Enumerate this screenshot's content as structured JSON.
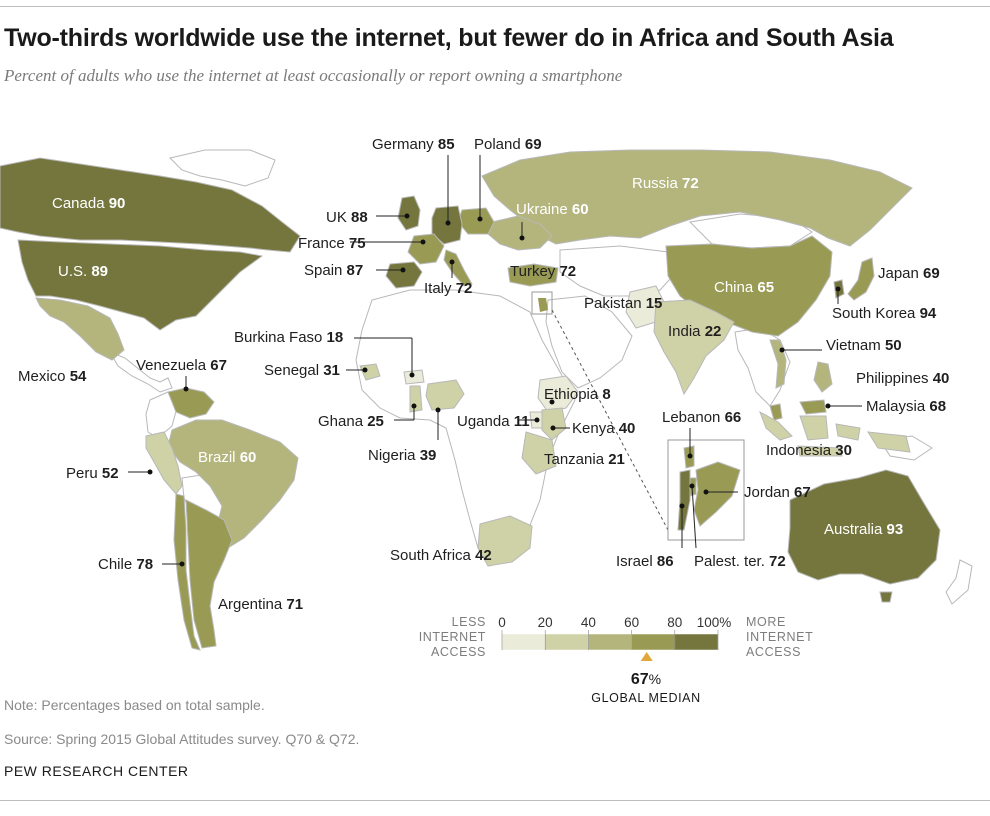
{
  "title": "Two-thirds worldwide use the internet, but fewer do in Africa and South Asia",
  "subtitle": "Percent of adults who use the internet at least occasionally or report owning a smartphone",
  "colors": {
    "bin_0_20": "#ebebd9",
    "bin_20_40": "#cfd2a6",
    "bin_40_60": "#b3b57d",
    "bin_60_80": "#999b55",
    "bin_80_100": "#74763d",
    "no_data": "#ffffff",
    "border": "#b8b8b8",
    "median_marker": "#e0a73a"
  },
  "legend": {
    "less_line1": "LESS",
    "less_line2": "INTERNET",
    "less_line3": "ACCESS",
    "more_line1": "MORE",
    "more_line2": "INTERNET",
    "more_line3": "ACCESS",
    "ticks": [
      "0",
      "20",
      "40",
      "60",
      "80",
      "100%"
    ],
    "median_value": "67",
    "median_unit": "%",
    "median_label": "GLOBAL MEDIAN"
  },
  "countries": [
    {
      "name": "Canada",
      "value": 90
    },
    {
      "name": "U.S.",
      "value": 89
    },
    {
      "name": "Mexico",
      "value": 54
    },
    {
      "name": "Venezuela",
      "value": 67
    },
    {
      "name": "Brazil",
      "value": 60
    },
    {
      "name": "Peru",
      "value": 52
    },
    {
      "name": "Chile",
      "value": 78
    },
    {
      "name": "Argentina",
      "value": 71
    },
    {
      "name": "Germany",
      "value": 85
    },
    {
      "name": "Poland",
      "value": 69
    },
    {
      "name": "UK",
      "value": 88
    },
    {
      "name": "France",
      "value": 75
    },
    {
      "name": "Spain",
      "value": 87
    },
    {
      "name": "Italy",
      "value": 72
    },
    {
      "name": "Ukraine",
      "value": 60
    },
    {
      "name": "Russia",
      "value": 72
    },
    {
      "name": "Turkey",
      "value": 72
    },
    {
      "name": "Burkina Faso",
      "value": 18
    },
    {
      "name": "Senegal",
      "value": 31
    },
    {
      "name": "Ghana",
      "value": 25
    },
    {
      "name": "Nigeria",
      "value": 39
    },
    {
      "name": "Uganda",
      "value": 11
    },
    {
      "name": "Ethiopia",
      "value": 8
    },
    {
      "name": "Kenya",
      "value": 40
    },
    {
      "name": "Tanzania",
      "value": 21
    },
    {
      "name": "South Africa",
      "value": 42
    },
    {
      "name": "Pakistan",
      "value": 15
    },
    {
      "name": "India",
      "value": 22
    },
    {
      "name": "China",
      "value": 65
    },
    {
      "name": "Japan",
      "value": 69
    },
    {
      "name": "South Korea",
      "value": 94
    },
    {
      "name": "Vietnam",
      "value": 50
    },
    {
      "name": "Philippines",
      "value": 40
    },
    {
      "name": "Malaysia",
      "value": 68
    },
    {
      "name": "Indonesia",
      "value": 30
    },
    {
      "name": "Australia",
      "value": 93
    },
    {
      "name": "Lebanon",
      "value": 66
    },
    {
      "name": "Jordan",
      "value": 67
    },
    {
      "name": "Israel",
      "value": 86
    },
    {
      "name": "Palest. ter.",
      "value": 72
    }
  ],
  "note": "Note: Percentages based on total sample.",
  "source": "Source: Spring 2015 Global Attitudes survey. Q70 & Q72.",
  "credit": "PEW RESEARCH CENTER"
}
